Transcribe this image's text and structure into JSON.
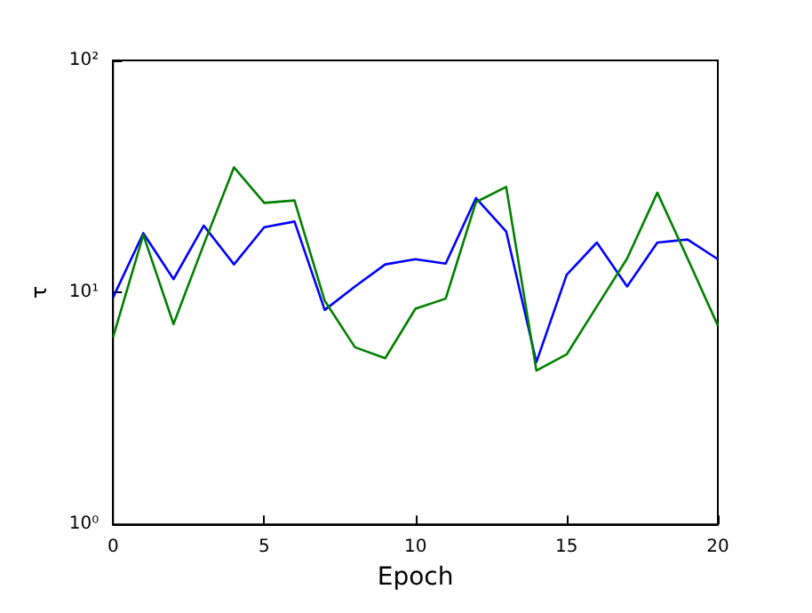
{
  "chart_data": {
    "type": "line",
    "xlabel": "Epoch",
    "ylabel": "τ",
    "x": [
      0,
      1,
      2,
      3,
      4,
      5,
      6,
      7,
      8,
      9,
      10,
      11,
      12,
      13,
      14,
      15,
      16,
      17,
      18,
      19,
      20
    ],
    "series": [
      {
        "color": "#0000ff",
        "values": [
          9.5,
          18.0,
          11.4,
          19.4,
          13.2,
          19.1,
          20.2,
          8.4,
          10.6,
          13.2,
          13.9,
          13.3,
          25.5,
          18.3,
          5.0,
          11.9,
          16.4,
          10.6,
          16.4,
          16.9,
          13.9
        ]
      },
      {
        "color": "#008000",
        "values": [
          6.4,
          17.7,
          7.3,
          16.1,
          34.6,
          24.3,
          24.9,
          9.2,
          5.8,
          5.2,
          8.5,
          9.4,
          24.5,
          28.5,
          4.6,
          5.4,
          8.7,
          14.0,
          26.9,
          14.0,
          7.2
        ]
      }
    ],
    "xlim": [
      0,
      20
    ],
    "xticks": [
      0,
      5,
      10,
      15,
      20
    ],
    "log": true,
    "ylim": [
      1,
      100
    ],
    "yticks": [
      {
        "value": 1,
        "label": "10⁰"
      },
      {
        "value": 10,
        "label": "10¹"
      },
      {
        "value": 100,
        "label": "10²"
      }
    ],
    "grid": false,
    "marker": "none",
    "line_style": "solid"
  }
}
